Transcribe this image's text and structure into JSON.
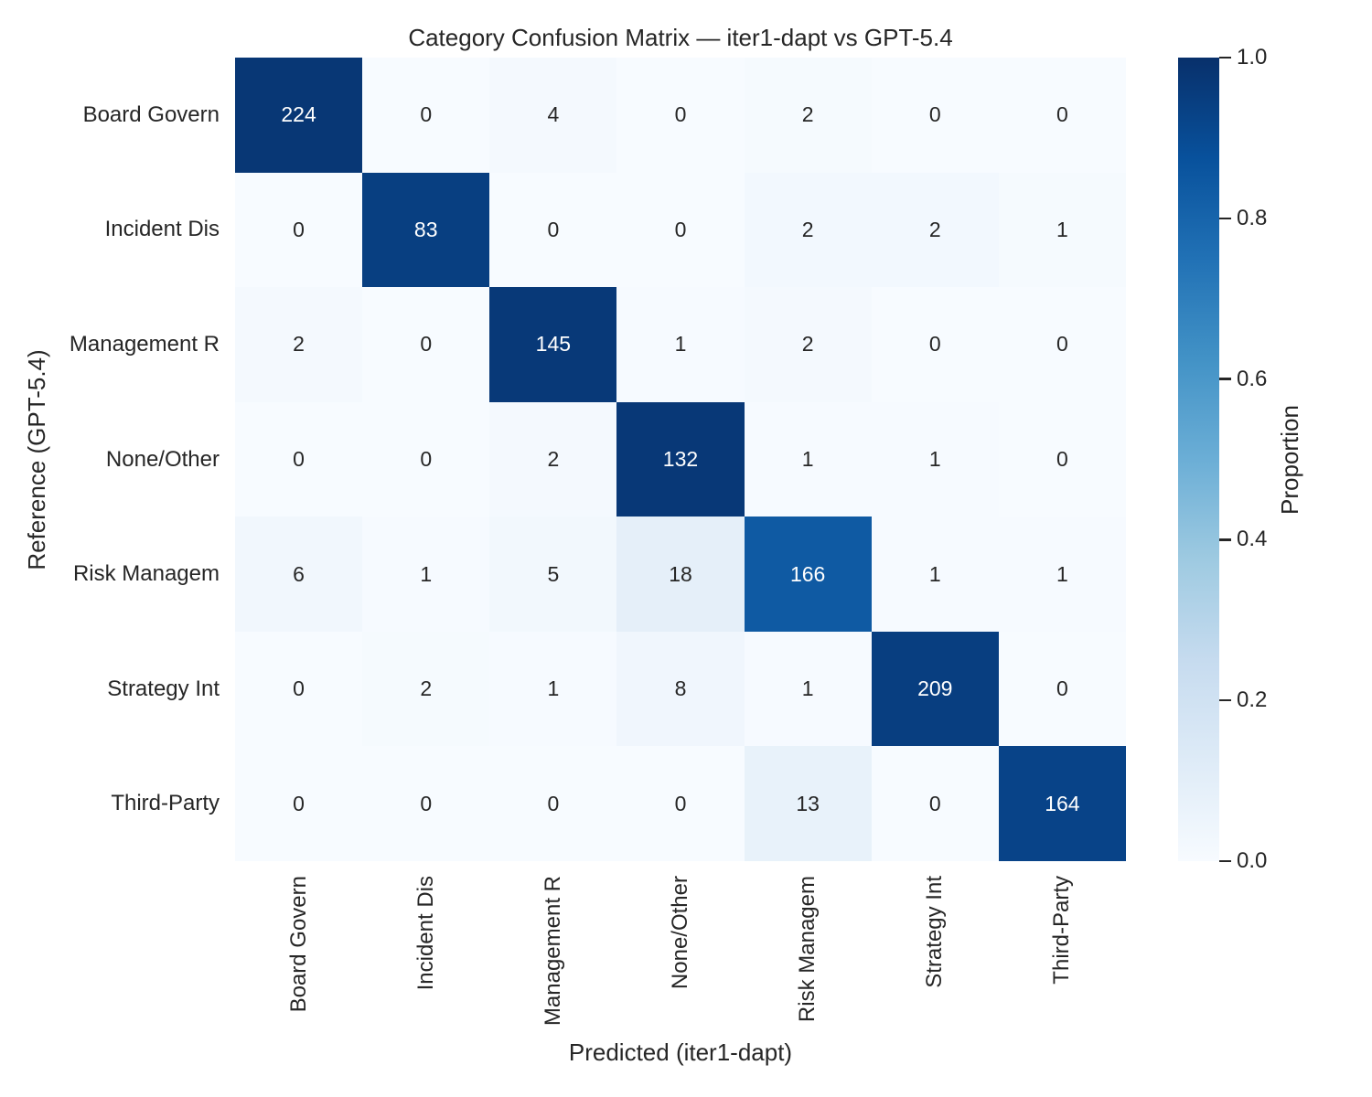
{
  "chart_data": {
    "type": "heatmap",
    "title": "Category Confusion Matrix — iter1-dapt vs GPT-5.4",
    "xlabel": "Predicted (iter1-dapt)",
    "ylabel": "Reference (GPT-5.4)",
    "x_categories": [
      "Board Govern",
      "Incident Dis",
      "Management R",
      "None/Other",
      "Risk Managem",
      "Strategy Int",
      "Third-Party"
    ],
    "y_categories": [
      "Board Govern",
      "Incident Dis",
      "Management R",
      "None/Other",
      "Risk Managem",
      "Strategy Int",
      "Third-Party"
    ],
    "matrix": [
      [
        224,
        0,
        4,
        0,
        2,
        0,
        0
      ],
      [
        0,
        83,
        0,
        0,
        2,
        2,
        1
      ],
      [
        2,
        0,
        145,
        1,
        2,
        0,
        0
      ],
      [
        0,
        0,
        2,
        132,
        1,
        1,
        0
      ],
      [
        6,
        1,
        5,
        18,
        166,
        1,
        1
      ],
      [
        0,
        2,
        1,
        8,
        1,
        209,
        0
      ],
      [
        0,
        0,
        0,
        0,
        13,
        0,
        164
      ]
    ],
    "normalization": "row",
    "grid": false,
    "colorbar": {
      "label": "Proportion",
      "tick_labels": [
        "1.0",
        "0.8",
        "0.6",
        "0.4",
        "0.2",
        "0.0"
      ],
      "tick_values": [
        1.0,
        0.8,
        0.6,
        0.4,
        0.2,
        0.0
      ],
      "range": [
        0.0,
        1.0
      ]
    },
    "colormap": {
      "name": "Blues",
      "anchors": [
        "#f7fbff",
        "#deebf7",
        "#c6dbef",
        "#9ecae1",
        "#6baed6",
        "#4292c6",
        "#2171b5",
        "#08519c",
        "#08306b"
      ]
    },
    "colors": {
      "annotation_dark": "#262626",
      "annotation_light": "#ffffff"
    }
  }
}
